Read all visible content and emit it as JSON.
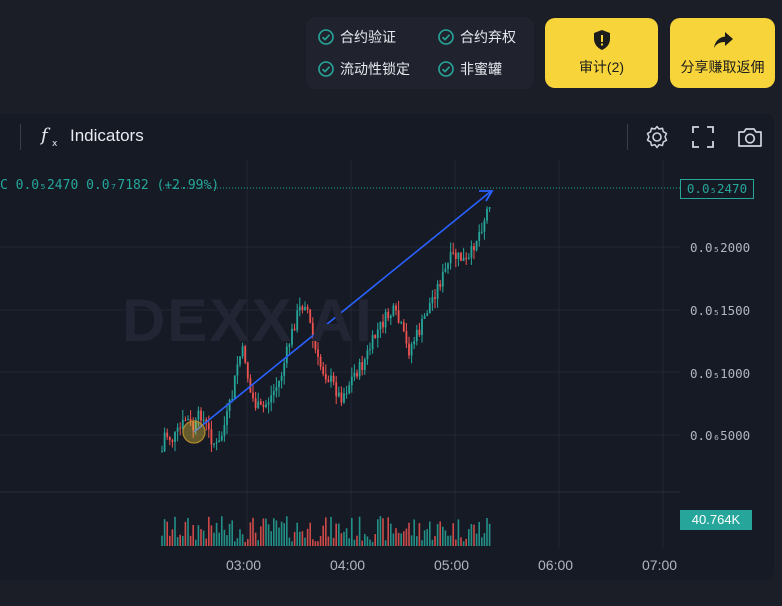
{
  "security_checks": [
    {
      "label": "合约验证"
    },
    {
      "label": "合约弃权"
    },
    {
      "label": "流动性锁定"
    },
    {
      "label": "非蜜罐"
    }
  ],
  "buttons": {
    "audit_label": "审计(2)",
    "share_label": "分享赚取返佣"
  },
  "toolbar": {
    "indicators_label": "Indicators"
  },
  "legend": {
    "text": "C 0.0₅2470  0.0₇7182 (+2.99%)"
  },
  "watermark": "DEXX AI",
  "price_axis": {
    "current_price": "0.0₅2470",
    "ticks": [
      "0.0₅2000",
      "0.0₅1500",
      "0.0₅1000",
      "0.0₆5000"
    ]
  },
  "volume": {
    "current": "40.764K"
  },
  "time_axis": {
    "ticks": [
      "03:00",
      "04:00",
      "05:00",
      "06:00",
      "07:00"
    ]
  },
  "colors": {
    "accent": "#f7d43a",
    "up": "#26a69a",
    "down": "#ef5350",
    "arrow": "#2962ff",
    "check": "#26a69a"
  }
}
